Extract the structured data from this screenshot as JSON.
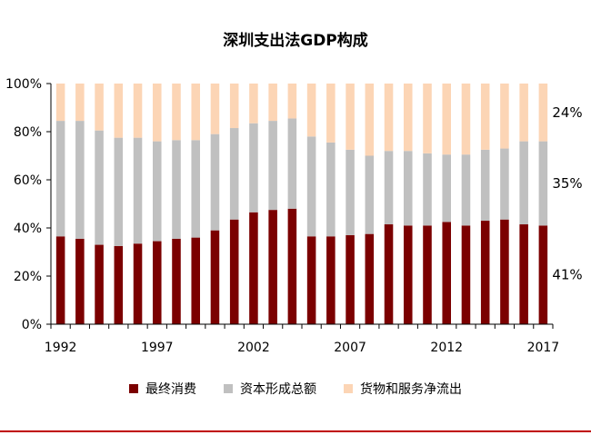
{
  "chart_data": {
    "type": "bar",
    "stacked": true,
    "title": "深圳支出法GDP构成",
    "x": [
      1992,
      1993,
      1994,
      1995,
      1996,
      1997,
      1998,
      1999,
      2000,
      2001,
      2002,
      2003,
      2004,
      2005,
      2006,
      2007,
      2008,
      2009,
      2010,
      2011,
      2012,
      2013,
      2014,
      2015,
      2016,
      2017
    ],
    "x_tick_labels": [
      "1992",
      "1997",
      "2002",
      "2007",
      "2012",
      "2017"
    ],
    "y_tick_labels": [
      "0%",
      "20%",
      "40%",
      "60%",
      "80%",
      "100%"
    ],
    "ylim": [
      0,
      100
    ],
    "series": [
      {
        "name": "最终消费",
        "color": "#7b0000",
        "values": [
          36.5,
          35.5,
          33,
          32.5,
          33.5,
          34.5,
          35.5,
          36,
          39,
          43.5,
          46.5,
          47.5,
          48,
          36.5,
          36.5,
          37,
          37.5,
          41.5,
          41,
          41,
          42.5,
          41,
          43,
          43.5,
          41.5,
          41
        ]
      },
      {
        "name": "资本形成总额",
        "color": "#c0c0c0",
        "values": [
          48,
          49,
          47.5,
          45,
          44,
          41.5,
          41,
          40.5,
          40,
          38,
          37,
          37,
          37.5,
          41.5,
          39,
          35.5,
          32.5,
          30.5,
          31,
          30,
          28,
          29.5,
          29.5,
          29.5,
          34.5,
          35
        ]
      },
      {
        "name": "货物和服务净流出",
        "color": "#fcd5b5",
        "values": [
          15.5,
          15.5,
          19.5,
          22.5,
          22.5,
          24,
          23.5,
          23.5,
          21,
          18.5,
          16.5,
          15.5,
          14.5,
          22,
          24.5,
          27.5,
          30,
          28,
          28,
          29,
          29.5,
          29.5,
          27.5,
          27,
          24,
          24
        ]
      }
    ],
    "end_labels": [
      "41%",
      "35%",
      "24%"
    ],
    "grid": false,
    "legend_position": "bottom"
  }
}
